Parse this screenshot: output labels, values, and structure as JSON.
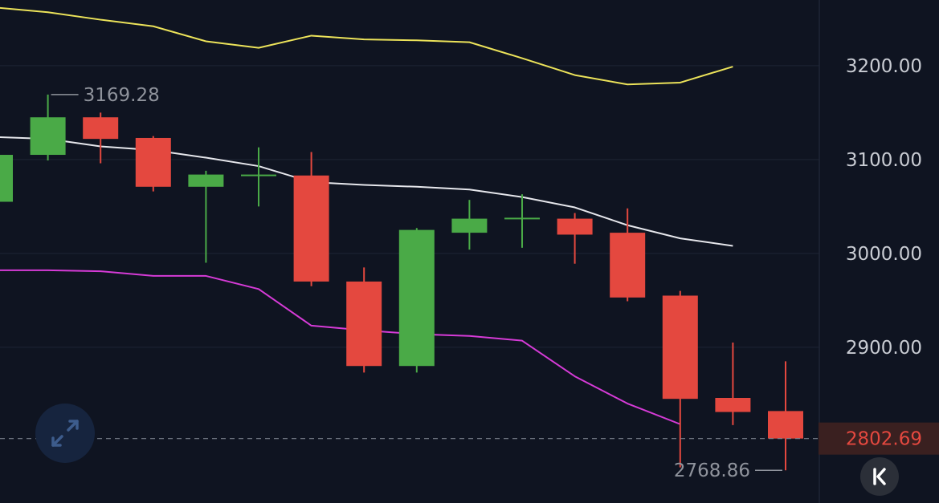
{
  "chart_data": {
    "type": "candlestick",
    "ylim": [
      2740,
      3270
    ],
    "y_ticks": [
      3200,
      3100,
      3000,
      2900
    ],
    "y_tick_labels": [
      "3200.00",
      "3100.00",
      "3000.00",
      "2900.00"
    ],
    "grid": true,
    "candles": [
      {
        "open": 3055,
        "high": 3105,
        "low": 3055,
        "close": 3105
      },
      {
        "open": 3105,
        "high": 3169.28,
        "low": 3099,
        "close": 3145
      },
      {
        "open": 3145,
        "high": 3150,
        "low": 3096,
        "close": 3122
      },
      {
        "open": 3123,
        "high": 3125,
        "low": 3066,
        "close": 3071
      },
      {
        "open": 3071,
        "high": 3088,
        "low": 2990,
        "close": 3084
      },
      {
        "open": 3084,
        "high": 3113,
        "low": 3050,
        "close": 3084
      },
      {
        "open": 3083,
        "high": 3108,
        "low": 2965,
        "close": 2970
      },
      {
        "open": 2970,
        "high": 2985,
        "low": 2873,
        "close": 2880
      },
      {
        "open": 2880,
        "high": 3027,
        "low": 2873,
        "close": 3025
      },
      {
        "open": 3022,
        "high": 3057,
        "low": 3004,
        "close": 3037
      },
      {
        "open": 3038,
        "high": 3063,
        "low": 3006,
        "close": 3038
      },
      {
        "open": 3037,
        "high": 3043,
        "low": 2989,
        "close": 3020
      },
      {
        "open": 3022,
        "high": 3048,
        "low": 2949,
        "close": 2953
      },
      {
        "open": 2955,
        "high": 2960,
        "low": 2772,
        "close": 2845
      },
      {
        "open": 2846,
        "high": 2905,
        "low": 2817,
        "close": 2831
      },
      {
        "open": 2832,
        "high": 2885,
        "low": 2768.86,
        "close": 2802.69
      }
    ],
    "series": [
      {
        "color": "#ece35a",
        "values": [
          3262,
          3257,
          3249,
          3242,
          3226,
          3219,
          3232,
          3228,
          3227,
          3225,
          3208,
          3190,
          3180,
          3182,
          3199
        ]
      },
      {
        "color": "#e6e7ec",
        "values": [
          3124,
          3122,
          3114,
          3110,
          3102,
          3093,
          3076,
          3073,
          3071,
          3068,
          3060,
          3049,
          3030,
          3016,
          3008
        ]
      },
      {
        "color": "#d63bd7",
        "values": [
          2982,
          2982,
          2981,
          2976,
          2976,
          2962,
          2923,
          2918,
          2914,
          2912,
          2907,
          2869,
          2840,
          2818
        ]
      }
    ],
    "annotations": {
      "high_label": "3169.28",
      "low_label": "2768.86"
    },
    "last_price": {
      "value": 2802.69,
      "label": "2802.69"
    },
    "colors": {
      "up": "#4aaa47",
      "down": "#e4483f",
      "grid": "#1f2535",
      "axis_text": "#c9ccd3",
      "annotation": "#8f939c"
    }
  },
  "ui": {
    "expand_icon": "expand-arrows-icon",
    "back_icon": "skip-to-start-icon"
  }
}
